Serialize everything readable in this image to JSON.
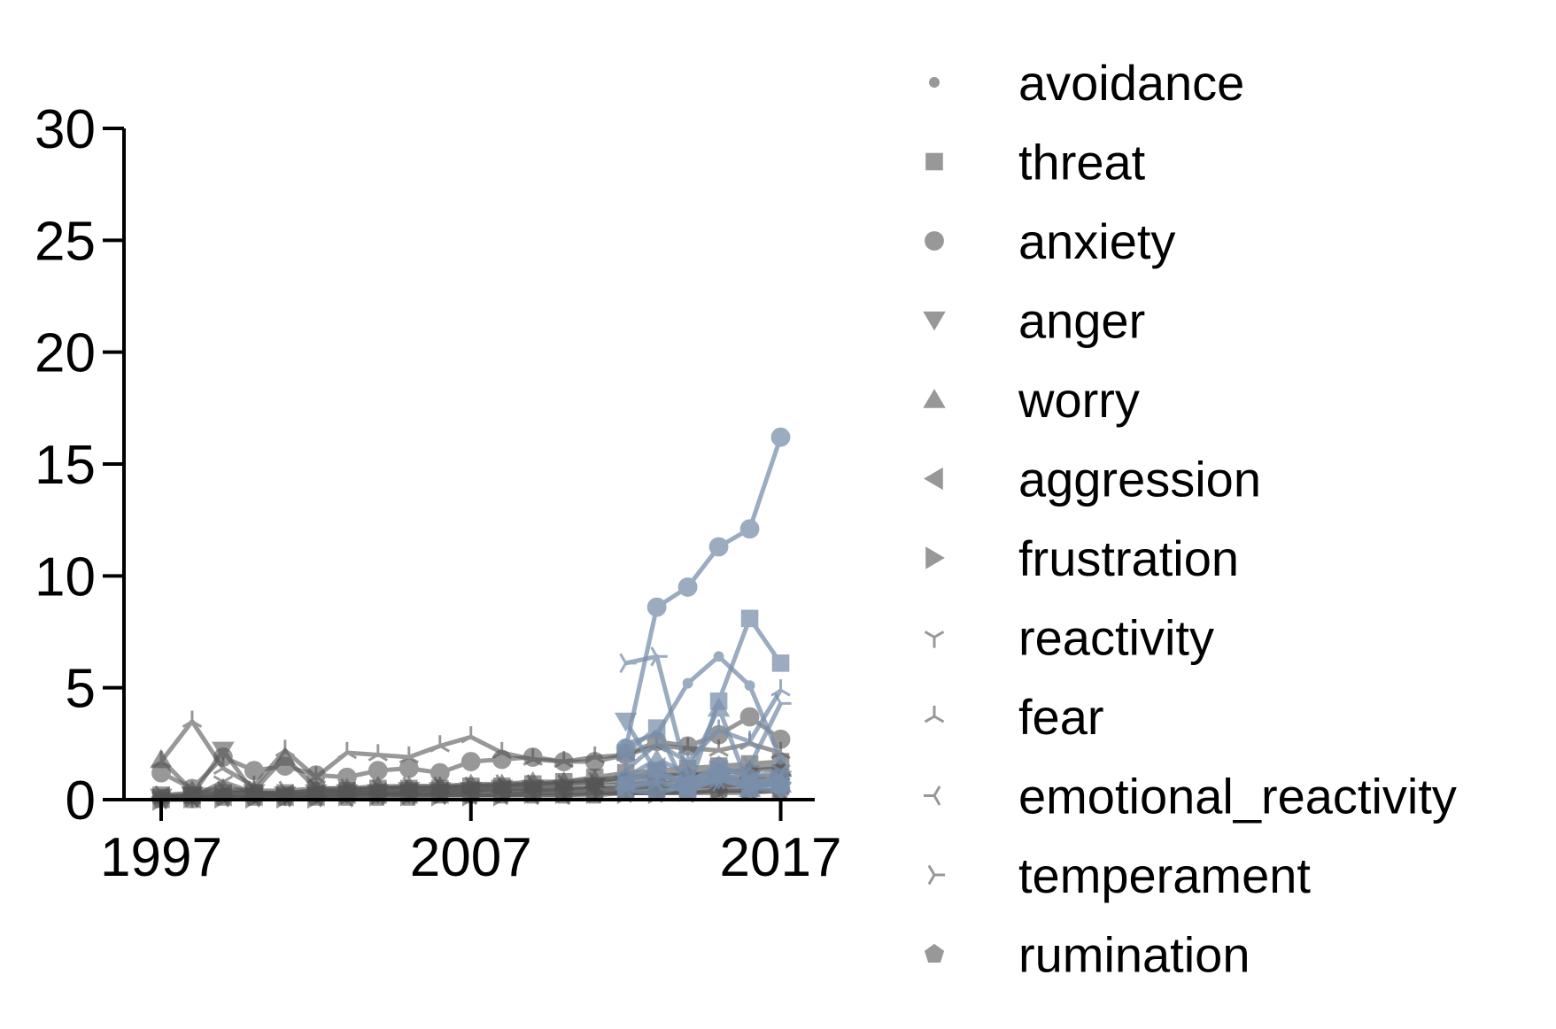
{
  "chart_data": {
    "type": "line",
    "title": "",
    "xlabel": "",
    "ylabel": "",
    "xlim": [
      1995.8,
      2018.1
    ],
    "ylim": [
      0,
      30
    ],
    "xticks": [
      1997,
      2007,
      2017
    ],
    "xtick_labels": [
      "1997",
      "2007",
      "2017"
    ],
    "yticks": [
      0,
      5,
      10,
      15,
      20,
      25,
      30
    ],
    "ytick_labels": [
      "0",
      "5",
      "10",
      "15",
      "20",
      "25",
      "30"
    ],
    "grid": false,
    "legend_position": "right",
    "colors": {
      "dark": "#555555",
      "highlight": "#7a8fab"
    },
    "series": [
      {
        "name": "avoidance",
        "marker": "point",
        "x": [
          1997,
          1998,
          1999,
          2000,
          2001,
          2002,
          2003,
          2004,
          2005,
          2006,
          2007,
          2008,
          2009,
          2010,
          2011,
          2012,
          2013,
          2014,
          2015,
          2016,
          2017
        ],
        "y": [
          0.1,
          0.2,
          0.3,
          0.3,
          0.3,
          0.4,
          0.4,
          0.5,
          0.5,
          0.5,
          0.6,
          0.6,
          0.6,
          0.7,
          0.8,
          1.0,
          1.1,
          1.2,
          1.3,
          1.4,
          1.5
        ],
        "recent": {
          "x": [
            2012,
            2013,
            2014,
            2015,
            2016,
            2017
          ],
          "y": [
            2.5,
            2.9,
            5.2,
            6.4,
            5.1,
            1.8
          ]
        }
      },
      {
        "name": "threat",
        "marker": "square",
        "x": [
          1997,
          1998,
          1999,
          2000,
          2001,
          2002,
          2003,
          2004,
          2005,
          2006,
          2007,
          2008,
          2009,
          2010,
          2011,
          2012,
          2013,
          2014,
          2015,
          2016,
          2017
        ],
        "y": [
          0.2,
          0.2,
          0.3,
          0.3,
          0.3,
          0.4,
          0.4,
          0.5,
          0.5,
          0.5,
          0.6,
          0.6,
          0.7,
          0.8,
          1.0,
          1.2,
          1.3,
          1.4,
          1.5,
          1.6,
          1.7
        ],
        "recent": {
          "x": [
            2012,
            2013,
            2014,
            2015,
            2016,
            2017
          ],
          "y": [
            2.1,
            3.2,
            0.4,
            4.4,
            8.1,
            6.1
          ]
        }
      },
      {
        "name": "anxiety",
        "marker": "circle",
        "x": [
          1997,
          1998,
          1999,
          2000,
          2001,
          2002,
          2003,
          2004,
          2005,
          2006,
          2007,
          2008,
          2009,
          2010,
          2011,
          2012,
          2013,
          2014,
          2015,
          2016,
          2017
        ],
        "y": [
          1.2,
          0.5,
          1.9,
          1.3,
          1.5,
          1.1,
          1.0,
          1.3,
          1.4,
          1.2,
          1.7,
          1.8,
          1.9,
          1.7,
          1.7,
          2.0,
          2.6,
          2.4,
          2.9,
          3.7,
          2.7
        ],
        "recent": {
          "x": [
            2012,
            2013,
            2014,
            2015,
            2016,
            2017
          ],
          "y": [
            2.3,
            8.6,
            9.5,
            11.3,
            12.1,
            16.2
          ]
        }
      },
      {
        "name": "anger",
        "marker": "triangle_down",
        "x": [
          1997,
          1998,
          1999,
          2000,
          2001,
          2002,
          2003,
          2004,
          2005,
          2006,
          2007,
          2008,
          2009,
          2010,
          2011,
          2012,
          2013,
          2014,
          2015,
          2016,
          2017
        ],
        "y": [
          0.1,
          0.2,
          2.2,
          0.3,
          0.2,
          0.3,
          0.3,
          0.3,
          0.4,
          0.4,
          0.4,
          0.5,
          0.5,
          0.5,
          0.6,
          0.7,
          0.7,
          0.8,
          0.8,
          0.9,
          0.9
        ],
        "recent": {
          "x": [
            2012,
            2013,
            2014,
            2015,
            2016,
            2017
          ],
          "y": [
            3.5,
            1.2,
            0.6,
            0.9,
            0.5,
            0.4
          ]
        }
      },
      {
        "name": "worry",
        "marker": "triangle_up",
        "x": [
          1997,
          1998,
          1999,
          2000,
          2001,
          2002,
          2003,
          2004,
          2005,
          2006,
          2007,
          2008,
          2009,
          2010,
          2011,
          2012,
          2013,
          2014,
          2015,
          2016,
          2017
        ],
        "y": [
          1.8,
          0.4,
          0.5,
          0.4,
          1.9,
          0.5,
          0.5,
          0.6,
          0.6,
          0.6,
          0.7,
          0.7,
          0.8,
          0.8,
          0.9,
          1.0,
          1.1,
          1.1,
          1.2,
          1.3,
          1.4
        ],
        "recent": {
          "x": [
            2012,
            2013,
            2014,
            2015,
            2016,
            2017
          ],
          "y": [
            1.0,
            1.8,
            1.2,
            4.1,
            0.5,
            0.7
          ]
        }
      },
      {
        "name": "aggression",
        "marker": "triangle_left",
        "x": [
          1997,
          1998,
          1999,
          2000,
          2001,
          2002,
          2003,
          2004,
          2005,
          2006,
          2007,
          2008,
          2009,
          2010,
          2011,
          2012,
          2013,
          2014,
          2015,
          2016,
          2017
        ],
        "y": [
          0.1,
          0.1,
          0.2,
          0.2,
          0.2,
          0.2,
          0.3,
          0.3,
          0.3,
          0.3,
          0.4,
          0.4,
          0.4,
          0.4,
          0.5,
          0.5,
          0.5,
          0.6,
          0.6,
          0.6,
          0.7
        ],
        "recent": {
          "x": [
            2012,
            2013,
            2014,
            2015,
            2016,
            2017
          ],
          "y": [
            0.8,
            1.4,
            0.6,
            1.2,
            0.7,
            0.9
          ]
        }
      },
      {
        "name": "frustration",
        "marker": "triangle_right",
        "x": [
          1997,
          1998,
          1999,
          2000,
          2001,
          2002,
          2003,
          2004,
          2005,
          2006,
          2007,
          2008,
          2009,
          2010,
          2011,
          2012,
          2013,
          2014,
          2015,
          2016,
          2017
        ],
        "y": [
          0.0,
          0.1,
          0.1,
          0.1,
          0.1,
          0.1,
          0.2,
          0.2,
          0.2,
          0.2,
          0.2,
          0.2,
          0.3,
          0.3,
          0.3,
          0.3,
          0.3,
          0.4,
          0.4,
          0.4,
          0.4
        ],
        "recent": {
          "x": [
            2012,
            2013,
            2014,
            2015,
            2016,
            2017
          ],
          "y": [
            0.6,
            0.9,
            0.4,
            1.0,
            0.6,
            0.8
          ]
        }
      },
      {
        "name": "reactivity",
        "marker": "tri_down",
        "x": [
          1997,
          1998,
          1999,
          2000,
          2001,
          2002,
          2003,
          2004,
          2005,
          2006,
          2007,
          2008,
          2009,
          2010,
          2011,
          2012,
          2013,
          2014,
          2015,
          2016,
          2017
        ],
        "y": [
          0.1,
          0.1,
          0.8,
          0.3,
          0.2,
          0.3,
          0.3,
          0.3,
          0.3,
          0.4,
          0.4,
          0.4,
          0.4,
          0.5,
          0.5,
          0.5,
          0.6,
          0.6,
          0.6,
          0.7,
          0.7
        ],
        "recent": {
          "x": [
            2012,
            2013,
            2014,
            2015,
            2016,
            2017
          ],
          "y": [
            0.9,
            1.1,
            0.8,
            1.5,
            1.0,
            1.3
          ]
        }
      },
      {
        "name": "fear",
        "marker": "tri_up",
        "x": [
          1997,
          1998,
          1999,
          2000,
          2001,
          2002,
          2003,
          2004,
          2005,
          2006,
          2007,
          2008,
          2009,
          2010,
          2011,
          2012,
          2013,
          2014,
          2015,
          2016,
          2017
        ],
        "y": [
          1.7,
          3.5,
          1.4,
          0.6,
          2.2,
          1.0,
          2.1,
          2.0,
          1.9,
          2.4,
          2.8,
          2.1,
          1.8,
          1.7,
          1.9,
          2.0,
          2.4,
          2.3,
          2.2,
          2.5,
          2.1
        ],
        "recent": {
          "x": [
            2012,
            2013,
            2014,
            2015,
            2016,
            2017
          ],
          "y": [
            1.3,
            2.5,
            1.7,
            3.1,
            2.6,
            4.9
          ]
        }
      },
      {
        "name": "emotional_reactivity",
        "marker": "tri_left",
        "x": [
          1997,
          1998,
          1999,
          2000,
          2001,
          2002,
          2003,
          2004,
          2005,
          2006,
          2007,
          2008,
          2009,
          2010,
          2011,
          2012,
          2013,
          2014,
          2015,
          2016,
          2017
        ],
        "y": [
          0.0,
          0.1,
          0.1,
          0.1,
          0.1,
          0.1,
          0.1,
          0.2,
          0.2,
          0.2,
          0.2,
          0.2,
          0.2,
          0.2,
          0.3,
          0.3,
          0.3,
          0.3,
          0.4,
          0.4,
          0.4
        ],
        "recent": {
          "x": [
            2012,
            2013,
            2014,
            2015,
            2016,
            2017
          ],
          "y": [
            0.5,
            0.8,
            0.4,
            0.9,
            0.6,
            1.1
          ]
        }
      },
      {
        "name": "temperament",
        "marker": "tri_right",
        "x": [
          1997,
          1998,
          1999,
          2000,
          2001,
          2002,
          2003,
          2004,
          2005,
          2006,
          2007,
          2008,
          2009,
          2010,
          2011,
          2012,
          2013,
          2014,
          2015,
          2016,
          2017
        ],
        "y": [
          0.2,
          0.3,
          0.4,
          0.4,
          0.4,
          0.5,
          0.5,
          0.5,
          0.6,
          0.6,
          0.6,
          0.7,
          0.7,
          0.7,
          0.8,
          0.8,
          0.9,
          0.9,
          1.0,
          1.0,
          1.1
        ],
        "recent": {
          "x": [
            2012,
            2013,
            2014,
            2015,
            2016,
            2017
          ],
          "y": [
            6.1,
            6.4,
            1.0,
            0.8,
            1.5,
            4.3
          ]
        }
      },
      {
        "name": "rumination",
        "marker": "pentagon",
        "x": [
          1997,
          1998,
          1999,
          2000,
          2001,
          2002,
          2003,
          2004,
          2005,
          2006,
          2007,
          2008,
          2009,
          2010,
          2011,
          2012,
          2013,
          2014,
          2015,
          2016,
          2017
        ],
        "y": [
          0.0,
          0.0,
          0.1,
          0.1,
          0.1,
          0.1,
          0.1,
          0.1,
          0.1,
          0.2,
          0.2,
          0.2,
          0.2,
          0.2,
          0.2,
          0.3,
          0.3,
          0.3,
          0.3,
          0.3,
          0.4
        ],
        "recent": {
          "x": [
            2012,
            2013,
            2014,
            2015,
            2016,
            2017
          ],
          "y": [
            0.4,
            0.3,
            0.6,
            1.5,
            1.0,
            0.6
          ]
        }
      }
    ]
  }
}
